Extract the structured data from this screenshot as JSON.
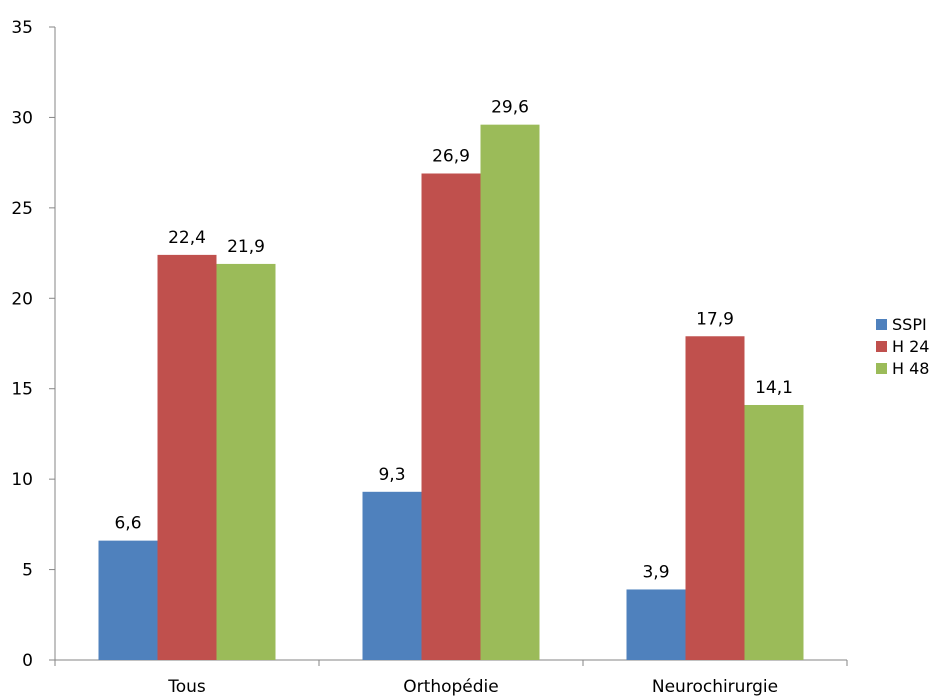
{
  "chart_data": {
    "type": "bar",
    "categories": [
      "Tous",
      "Orthopédie",
      "Neurochirurgie"
    ],
    "series": [
      {
        "name": "SSPI",
        "color": "#4F81BD",
        "values": [
          6.6,
          9.3,
          3.9
        ],
        "labels": [
          "6,6",
          "9,3",
          "3,9"
        ]
      },
      {
        "name": "H 24",
        "color": "#C0504D",
        "values": [
          22.4,
          26.9,
          17.9
        ],
        "labels": [
          "22,4",
          "26,9",
          "17,9"
        ]
      },
      {
        "name": "H 48",
        "color": "#9BBB59",
        "values": [
          21.9,
          29.6,
          14.1
        ],
        "labels": [
          "21,9",
          "29,6",
          "14,1"
        ]
      }
    ],
    "ylim": [
      0,
      35
    ],
    "yticks": [
      0,
      5,
      10,
      15,
      20,
      25,
      30,
      35
    ],
    "ytick_labels": [
      "0",
      "5",
      "10",
      "15",
      "20",
      "25",
      "30",
      "35"
    ],
    "grid": false,
    "legend_position": "right"
  }
}
